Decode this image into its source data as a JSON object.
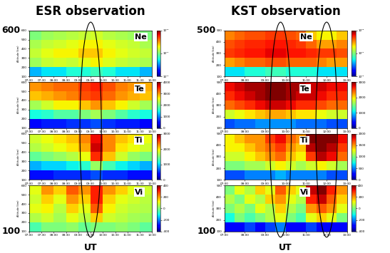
{
  "chart_data": [
    {
      "type": "heatmap",
      "title": "ESR observation",
      "xlabel": "UT",
      "ylabel": "Altitude (km)",
      "xlim": [
        7,
        12
      ],
      "xticks": [
        {
          "value": 7,
          "label": "07:00"
        },
        {
          "value": 7.5,
          "label": "07:30"
        },
        {
          "value": 8,
          "label": "08:00"
        },
        {
          "value": 8.5,
          "label": "08:30"
        },
        {
          "value": 9,
          "label": "09:00"
        },
        {
          "value": 9.5,
          "label": "09:30"
        },
        {
          "value": 10,
          "label": "10:00"
        },
        {
          "value": 10.5,
          "label": "10:30"
        },
        {
          "value": 11,
          "label": "11:00"
        },
        {
          "value": 11.5,
          "label": "11:30"
        },
        {
          "value": 12,
          "label": "12:00"
        }
      ],
      "ylim": [
        100,
        600
      ],
      "yticks": [
        100,
        200,
        300,
        400,
        500,
        600
      ],
      "x_edges": [
        7,
        7.5,
        8,
        8.5,
        9,
        9.5,
        10,
        10.5,
        11,
        11.5,
        12
      ],
      "y_edges": [
        100,
        200,
        300,
        400,
        500,
        600
      ],
      "highlights": [
        9.5
      ],
      "panels": [
        {
          "label": "Ne",
          "cells": [
            [
              40000000000.0,
              50000000000.0,
              50000000000.0,
              60000000000.0,
              60000000000.0,
              70000000000.0,
              60000000000.0,
              50000000000.0,
              50000000000.0,
              40000000000.0
            ],
            [
              120000000000.0,
              150000000000.0,
              160000000000.0,
              150000000000.0,
              180000000000.0,
              200000000000.0,
              170000000000.0,
              150000000000.0,
              140000000000.0,
              130000000000.0
            ],
            [
              150000000000.0,
              180000000000.0,
              200000000000.0,
              200000000000.0,
              250000000000.0,
              250000000000.0,
              200000000000.0,
              180000000000.0,
              160000000000.0,
              150000000000.0
            ],
            [
              130000000000.0,
              150000000000.0,
              160000000000.0,
              180000000000.0,
              200000000000.0,
              200000000000.0,
              180000000000.0,
              160000000000.0,
              150000000000.0,
              130000000000.0
            ],
            [
              100000000000.0,
              120000000000.0,
              130000000000.0,
              140000000000.0,
              150000000000.0,
              160000000000.0,
              140000000000.0,
              130000000000.0,
              120000000000.0,
              100000000000.0
            ]
          ],
          "colorbar": {
            "range": [
              10000000000.0,
              1000000000000.0
            ],
            "log": true,
            "ticks": [
              {
                "value": 10000000000.0,
                "label": "10¹⁰"
              },
              {
                "value": 100000000000.0,
                "label": "10¹¹"
              },
              {
                "value": 1000000000000.0,
                "label": "10¹²"
              }
            ]
          }
        },
        {
          "label": "Te",
          "cells": [
            [
              500,
              600,
              600,
              700,
              700,
              800,
              700,
              600,
              600,
              500
            ],
            [
              1500,
              1600,
              1800,
              1800,
              2000,
              2200,
              2000,
              1800,
              1600,
              1500
            ],
            [
              2200,
              2400,
              2600,
              2600,
              2800,
              3000,
              2800,
              2600,
              2400,
              2200
            ],
            [
              2800,
              2900,
              3000,
              3100,
              3300,
              3400,
              3200,
              3000,
              2900,
              2800
            ],
            [
              3000,
              3100,
              3200,
              3200,
              3400,
              3500,
              3300,
              3100,
              3000,
              2900
            ]
          ],
          "colorbar": {
            "range": [
              0,
              4000
            ],
            "ticks": [
              0,
              1000,
              2000,
              3000,
              4000
            ]
          }
        },
        {
          "label": "Ti",
          "cells": [
            [
              400,
              400,
              500,
              500,
              500,
              600,
              500,
              500,
              400,
              400
            ],
            [
              900,
              1000,
              1000,
              1100,
              1200,
              1600,
              1300,
              1100,
              1000,
              900
            ],
            [
              1400,
              1500,
              1600,
              1700,
              1900,
              2600,
              2100,
              1800,
              1600,
              1500
            ],
            [
              1700,
              1800,
              1900,
              2000,
              2200,
              2800,
              2300,
              2000,
              1900,
              1800
            ],
            [
              1800,
              1900,
              2000,
              2100,
              2300,
              2700,
              2300,
              2100,
              2000,
              1900
            ]
          ],
          "colorbar": {
            "range": [
              0,
              3000
            ],
            "ticks": [
              0,
              1000,
              2000,
              3000
            ]
          }
        },
        {
          "label": "Vi",
          "cells": [
            [
              -50,
              0,
              0,
              20,
              -20,
              0,
              0,
              20,
              0,
              -30
            ],
            [
              50,
              80,
              40,
              100,
              60,
              150,
              80,
              60,
              40,
              30
            ],
            [
              100,
              120,
              60,
              150,
              100,
              250,
              120,
              80,
              60,
              50
            ],
            [
              80,
              150,
              100,
              200,
              150,
              300,
              150,
              100,
              80,
              60
            ],
            [
              100,
              200,
              150,
              250,
              200,
              300,
              200,
              150,
              100,
              80
            ]
          ],
          "colorbar": {
            "range": [
              -400,
              400
            ],
            "ticks": [
              -400,
              -200,
              0,
              200,
              400
            ]
          }
        }
      ]
    },
    {
      "type": "heatmap",
      "title": "KST observation",
      "xlabel": "UT",
      "ylabel": "Altitude (km)",
      "xlim": [
        7,
        13
      ],
      "xticks": [
        {
          "value": 7,
          "label": "07:00"
        },
        {
          "value": 8,
          "label": "08:00"
        },
        {
          "value": 9,
          "label": "09:00"
        },
        {
          "value": 10,
          "label": "10:00"
        },
        {
          "value": 11,
          "label": "11:00"
        },
        {
          "value": 12,
          "label": "12:00"
        },
        {
          "value": 13,
          "label": "13:00"
        }
      ],
      "ylim": [
        100,
        500
      ],
      "yticks": [
        100,
        200,
        300,
        400,
        500
      ],
      "x_edges": [
        7,
        7.5,
        8,
        8.5,
        9,
        9.5,
        10,
        10.5,
        11,
        11.5,
        12,
        12.5,
        13
      ],
      "y_edges": [
        100,
        180,
        260,
        340,
        420,
        500
      ],
      "highlights": [
        9.75,
        12
      ],
      "panels": [
        {
          "label": "Ne",
          "cells": [
            [
              50000000000.0,
              50000000000.0,
              60000000000.0,
              60000000000.0,
              70000000000.0,
              70000000000.0,
              60000000000.0,
              60000000000.0,
              60000000000.0,
              50000000000.0,
              50000000000.0,
              50000000000.0
            ],
            [
              300000000000.0,
              350000000000.0,
              400000000000.0,
              400000000000.0,
              450000000000.0,
              450000000000.0,
              400000000000.0,
              400000000000.0,
              400000000000.0,
              350000000000.0,
              300000000000.0,
              300000000000.0
            ],
            [
              500000000000.0,
              550000000000.0,
              600000000000.0,
              600000000000.0,
              650000000000.0,
              650000000000.0,
              600000000000.0,
              600000000000.0,
              550000000000.0,
              500000000000.0,
              500000000000.0,
              450000000000.0
            ],
            [
              450000000000.0,
              500000000000.0,
              550000000000.0,
              550000000000.0,
              600000000000.0,
              600000000000.0,
              550000000000.0,
              500000000000.0,
              400000000000.0,
              300000000000.0,
              300000000000.0,
              350000000000.0
            ],
            [
              350000000000.0,
              400000000000.0,
              450000000000.0,
              450000000000.0,
              500000000000.0,
              500000000000.0,
              450000000000.0,
              400000000000.0,
              250000000000.0,
              200000000000.0,
              200000000000.0,
              250000000000.0
            ]
          ],
          "colorbar": {
            "range": [
              10000000000.0,
              1000000000000.0
            ],
            "log": true,
            "ticks": [
              {
                "value": 10000000000.0,
                "label": "10¹⁰"
              },
              {
                "value": 100000000000.0,
                "label": "10¹¹"
              },
              {
                "value": 1000000000000.0,
                "label": "10¹²"
              }
            ]
          }
        },
        {
          "label": "Te",
          "cells": [
            [
              600,
              700,
              700,
              800,
              800,
              800,
              800,
              700,
              700,
              700,
              600,
              600
            ],
            [
              1800,
              1900,
              2000,
              2100,
              2200,
              2200,
              2100,
              2000,
              2000,
              1900,
              1800,
              1800
            ],
            [
              2400,
              2500,
              2600,
              2700,
              2800,
              2800,
              2700,
              2600,
              2600,
              2500,
              2400,
              2400
            ],
            [
              2600,
              2700,
              2800,
              2900,
              3000,
              3000,
              2900,
              2800,
              2800,
              2700,
              2600,
              2600
            ],
            [
              2700,
              2800,
              2900,
              2900,
              3000,
              3000,
              2900,
              2900,
              2800,
              2800,
              2700,
              2700
            ]
          ],
          "colorbar": {
            "range": [
              0,
              3000
            ],
            "ticks": [
              0,
              1000,
              2000,
              3000
            ]
          }
        },
        {
          "label": "Ti",
          "cells": [
            [
              400,
              400,
              500,
              500,
              500,
              600,
              500,
              500,
              500,
              500,
              400,
              400
            ],
            [
              1000,
              1000,
              1100,
              1100,
              1200,
              1300,
              1200,
              1100,
              1200,
              1300,
              1200,
              1100
            ],
            [
              1200,
              1200,
              1300,
              1400,
              1500,
              1600,
              1400,
              1300,
              1700,
              1900,
              1800,
              1600
            ],
            [
              1300,
              1300,
              1400,
              1500,
              1600,
              1700,
              1500,
              1400,
              1900,
              2000,
              1900,
              1700
            ],
            [
              1300,
              1400,
              1500,
              1500,
              1700,
              1800,
              1600,
              1500,
              2000,
              2000,
              2000,
              1800
            ]
          ],
          "colorbar": {
            "range": [
              0,
              2000
            ],
            "ticks": [
              0,
              500,
              1000,
              1500,
              2000
            ]
          }
        },
        {
          "label": "Vi",
          "cells": [
            [
              -300,
              -300,
              -250,
              -300,
              -250,
              -200,
              -300,
              -300,
              -250,
              -300,
              -300,
              -300
            ],
            [
              -100,
              0,
              -50,
              0,
              50,
              100,
              0,
              -50,
              100,
              150,
              100,
              0
            ],
            [
              0,
              50,
              0,
              100,
              50,
              150,
              50,
              0,
              200,
              250,
              200,
              100
            ],
            [
              50,
              0,
              100,
              50,
              150,
              200,
              100,
              50,
              300,
              350,
              250,
              150
            ],
            [
              0,
              100,
              50,
              150,
              100,
              250,
              150,
              100,
              350,
              400,
              300,
              200
            ]
          ],
          "colorbar": {
            "range": [
              -400,
              400
            ],
            "ticks": [
              -400,
              -200,
              0,
              200,
              400
            ]
          }
        }
      ]
    }
  ]
}
